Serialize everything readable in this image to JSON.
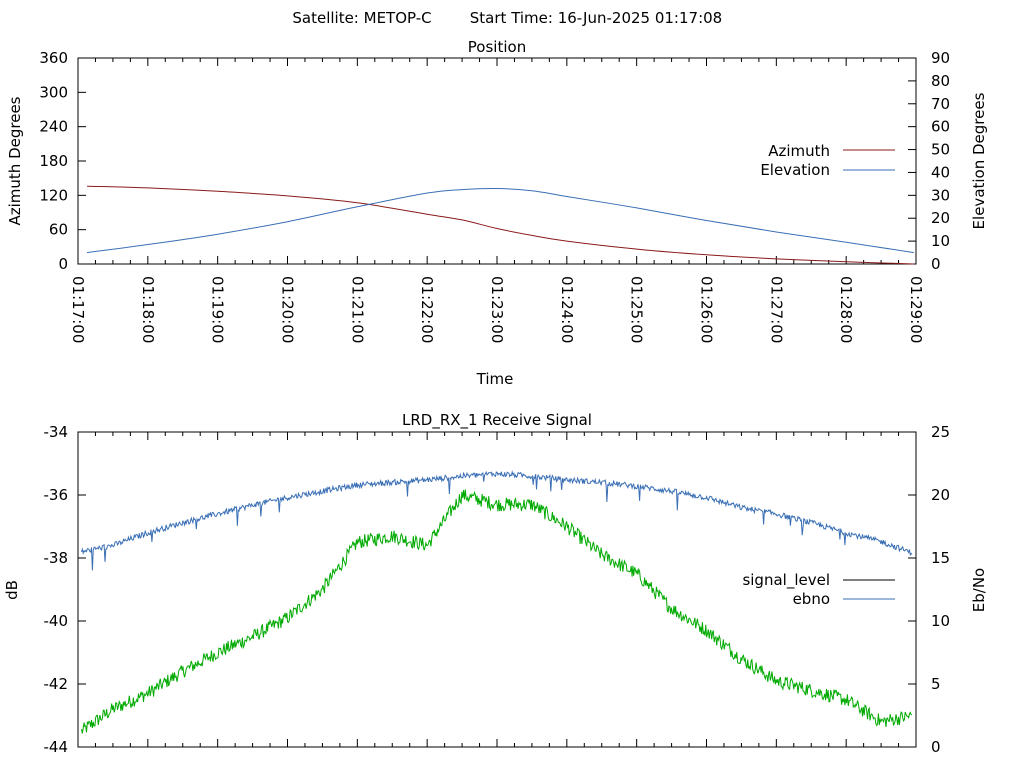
{
  "header": {
    "satellite_label": "Satellite: METOP-C",
    "start_time_label": "Start Time: 16-Jun-2025 01:17:08"
  },
  "colors": {
    "azimuth": "#8b1a1a",
    "elevation": "#3a6fb5",
    "signal_level": "#00aa00",
    "ebno": "#3a6fb5",
    "signal_level_legend": "#000000"
  },
  "chart_data": [
    {
      "type": "line",
      "title": "Position",
      "xlabel": "Time",
      "ylabel": "Azimuth Degrees",
      "y2label": "Elevation Degrees",
      "ylim": [
        0,
        360
      ],
      "y2lim": [
        0,
        90
      ],
      "yticks": [
        "0",
        "60",
        "120",
        "180",
        "240",
        "300",
        "360"
      ],
      "y2ticks": [
        "0",
        "10",
        "20",
        "30",
        "40",
        "50",
        "60",
        "70",
        "80",
        "90"
      ],
      "xticks": [
        "01:17:00",
        "01:18:00",
        "01:19:00",
        "01:20:00",
        "01:21:00",
        "01:22:00",
        "01:23:00",
        "01:24:00",
        "01:25:00",
        "01:26:00",
        "01:27:00",
        "01:28:00",
        "01:29:00"
      ],
      "xrange_minutes": [
        0,
        12
      ],
      "legend_position": "right",
      "series": [
        {
          "name": "Azimuth",
          "axis": "left",
          "x_minutes": [
            0.13,
            1,
            2,
            3,
            4,
            5,
            5.5,
            6,
            6.5,
            7,
            8,
            9,
            10,
            11,
            11.97
          ],
          "values": [
            136,
            133,
            127,
            119,
            107,
            87,
            77,
            62,
            50,
            40,
            26,
            16,
            9,
            4,
            0
          ]
        },
        {
          "name": "Elevation",
          "axis": "right",
          "x_minutes": [
            0.13,
            1,
            2,
            3,
            4,
            5,
            5.5,
            6,
            6.5,
            7,
            8,
            9,
            10,
            11,
            11.97
          ],
          "values": [
            5,
            8.5,
            13,
            18.5,
            25,
            31,
            32.5,
            33,
            32,
            29.5,
            24.5,
            19,
            14,
            9.5,
            5
          ]
        }
      ]
    },
    {
      "type": "line",
      "title": "LRD_RX_1 Receive Signal",
      "xlabel": "",
      "ylabel": "dB",
      "y2label": "Eb/No",
      "ylim": [
        -44,
        -34
      ],
      "y2lim": [
        0,
        25
      ],
      "yticks": [
        "-44",
        "-42",
        "-40",
        "-38",
        "-36",
        "-34"
      ],
      "y2ticks": [
        "0",
        "5",
        "10",
        "15",
        "20",
        "25"
      ],
      "xrange_minutes": [
        0,
        12
      ],
      "legend_position": "right",
      "series": [
        {
          "name": "signal_level",
          "axis": "left",
          "x_minutes": [
            0.05,
            0.5,
            1,
            1.5,
            2,
            2.5,
            3,
            3.5,
            4,
            4.5,
            5,
            5.5,
            6,
            6.5,
            7,
            7.5,
            8,
            8.5,
            9,
            9.5,
            10,
            10.5,
            11,
            11.5,
            11.95
          ],
          "values": [
            -43.5,
            -42.8,
            -42.3,
            -41.6,
            -41,
            -40.5,
            -39.9,
            -39,
            -37.5,
            -37.3,
            -37.6,
            -36,
            -36.3,
            -36.3,
            -37,
            -37.9,
            -38.5,
            -39.6,
            -40.3,
            -41.2,
            -41.9,
            -42.2,
            -42.5,
            -43.2,
            -43
          ]
        },
        {
          "name": "ebno",
          "axis": "right",
          "x_minutes": [
            0.05,
            0.5,
            1,
            1.5,
            2,
            2.5,
            3,
            3.5,
            4,
            4.5,
            5,
            5.5,
            6,
            6.5,
            7,
            7.5,
            8,
            8.5,
            9,
            9.5,
            10,
            10.5,
            11,
            11.5,
            11.95
          ],
          "values": [
            15.5,
            16,
            17,
            17.8,
            18.5,
            19.2,
            19.8,
            20.3,
            20.8,
            21,
            21.2,
            21.5,
            21.7,
            21.5,
            21.2,
            21,
            20.7,
            20.3,
            19.8,
            19,
            18.5,
            17.8,
            17,
            16.3,
            15.4
          ]
        }
      ]
    }
  ]
}
